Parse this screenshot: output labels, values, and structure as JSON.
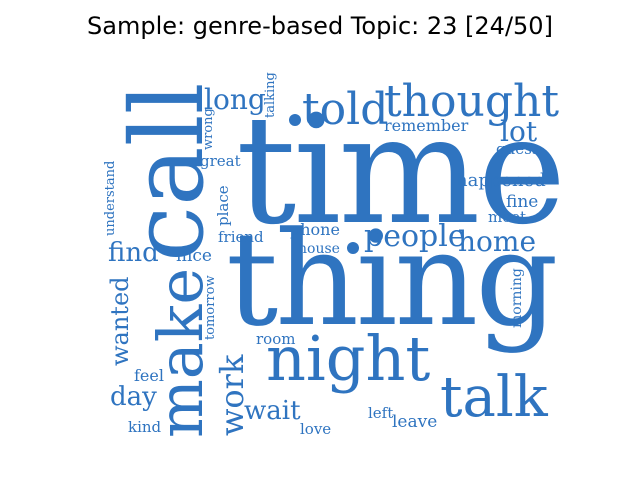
{
  "title": "Sample: genre-based Topic: 23 [24/50]",
  "color": "#2f74c0",
  "words": {
    "time": "time",
    "thing": "thing",
    "call": "call",
    "make": "make",
    "night": "night",
    "told": "told",
    "thought": "thought",
    "talk": "talk",
    "people": "people",
    "home": "home",
    "long": "long",
    "lot": "lot",
    "remember": "remember",
    "guess": "guess",
    "happened": "happened",
    "fine": "fine",
    "meet": "meet",
    "find": "find",
    "nice": "nice",
    "wanted": "wanted",
    "feel": "feel",
    "day": "day",
    "kind": "kind",
    "work": "work",
    "wait": "wait",
    "love": "love",
    "left": "left",
    "leave": "leave",
    "room": "room",
    "phone": "phone",
    "house": "house",
    "friend": "friend",
    "place": "place",
    "great": "great",
    "wrong": "wrong",
    "talking": "talking",
    "understand": "understand",
    "tomorrow": "tomorrow",
    "morning": "morning"
  }
}
